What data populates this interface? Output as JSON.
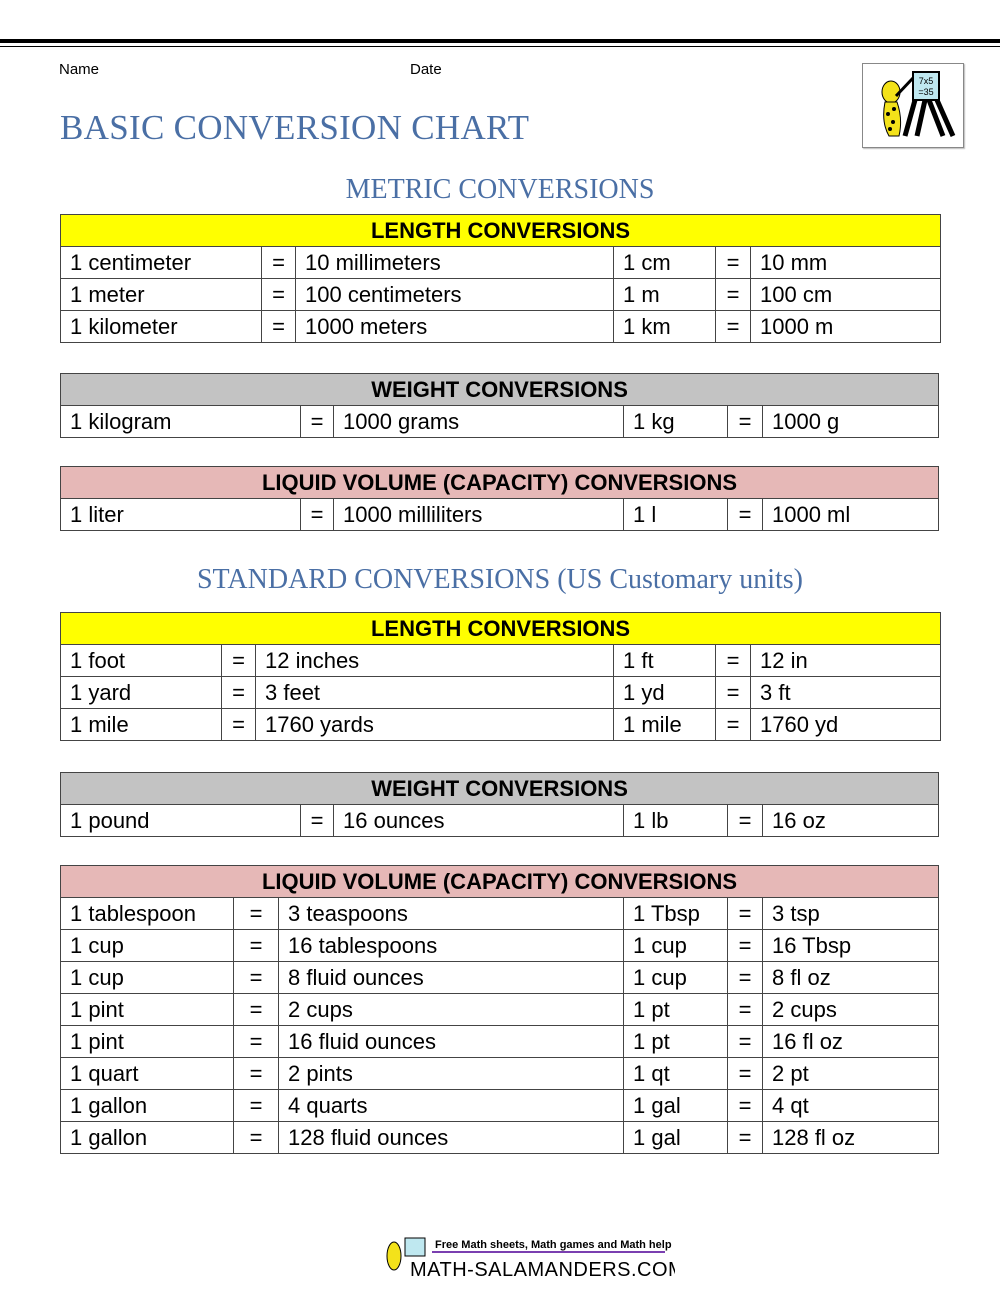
{
  "header": {
    "name_label": "Name",
    "date_label": "Date",
    "title": "BASIC CONVERSION CHART"
  },
  "logo_text": "7x5 =35",
  "sections": [
    {
      "title": "METRIC CONVERSIONS"
    },
    {
      "title": "STANDARD CONVERSIONS (US Customary units)"
    }
  ],
  "colors": {
    "length": "#ffff00",
    "weight": "#c3c3c3",
    "liquid": "#e6b8b7",
    "title": "#4a6fa5"
  },
  "tables": [
    {
      "title": "LENGTH CONVERSIONS",
      "kind": "length",
      "rows": [
        [
          "1 centimeter",
          "=",
          "10 millimeters",
          "1 cm",
          "=",
          "10 mm"
        ],
        [
          "1 meter",
          "=",
          "100 centimeters",
          "1 m",
          "=",
          "100 cm"
        ],
        [
          "1 kilometer",
          "=",
          "1000 meters",
          "1 km",
          "=",
          "1000 m"
        ]
      ]
    },
    {
      "title": "WEIGHT CONVERSIONS",
      "kind": "weight",
      "rows": [
        [
          "1 kilogram",
          "=",
          "1000 grams",
          "1 kg",
          "=",
          "1000 g"
        ]
      ]
    },
    {
      "title": "LIQUID VOLUME (CAPACITY) CONVERSIONS",
      "kind": "liquid",
      "rows": [
        [
          "1 liter",
          "=",
          "1000 milliliters",
          "1 l",
          "=",
          "1000 ml"
        ]
      ]
    },
    {
      "title": "LENGTH CONVERSIONS",
      "kind": "length",
      "rows": [
        [
          "1 foot",
          "=",
          "12 inches",
          "1 ft",
          "=",
          "12 in"
        ],
        [
          "1 yard",
          "=",
          "3 feet",
          "1 yd",
          "=",
          "3 ft"
        ],
        [
          "1 mile",
          "=",
          "1760 yards",
          "1 mile",
          "=",
          "1760 yd"
        ]
      ]
    },
    {
      "title": "WEIGHT CONVERSIONS",
      "kind": "weight",
      "rows": [
        [
          "1 pound",
          "=",
          "16 ounces",
          "1 lb",
          "=",
          "16 oz"
        ]
      ]
    },
    {
      "title": "LIQUID VOLUME (CAPACITY) CONVERSIONS",
      "kind": "liquid",
      "rows": [
        [
          "1 tablespoon",
          "=",
          "3 teaspoons",
          "1 Tbsp",
          "=",
          "3 tsp"
        ],
        [
          "1 cup",
          "=",
          "16 tablespoons",
          "1 cup",
          "=",
          "16 Tbsp"
        ],
        [
          "1 cup",
          "=",
          "8 fluid ounces",
          "1 cup",
          "=",
          "8 fl oz"
        ],
        [
          "1 pint",
          "=",
          "2 cups",
          "1 pt",
          "=",
          "2 cups"
        ],
        [
          "1 pint",
          "=",
          "16 fluid ounces",
          "1 pt",
          "=",
          "16 fl oz"
        ],
        [
          "1 quart",
          "=",
          "2 pints",
          "1 qt",
          "=",
          "2 pt"
        ],
        [
          "1 gallon",
          "=",
          "4 quarts",
          "1 gal",
          "=",
          "4 qt"
        ],
        [
          "1 gallon",
          "=",
          "128 fluid ounces",
          "1 gal",
          "=",
          "128 fl oz"
        ]
      ]
    }
  ],
  "footer": {
    "tagline": "Free Math sheets, Math games and Math help",
    "site": "MATH-SALAMANDERS.COM"
  }
}
